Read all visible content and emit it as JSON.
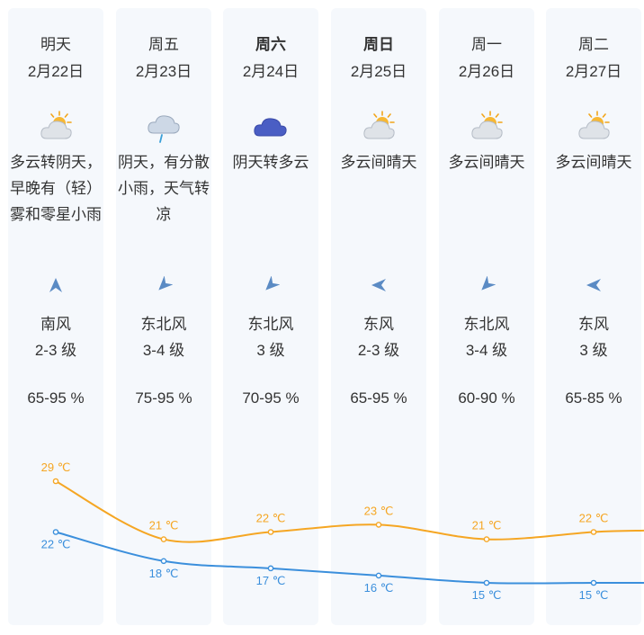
{
  "days": [
    {
      "day": "明天",
      "date": "2月22日",
      "bold": false,
      "icon": "cloudy-sun-icon",
      "desc": "多云转阴天，早晚有（轻）雾和零星小雨",
      "wind_dir": "南风",
      "wind_level": "2-3 级",
      "humidity": "65-95 %",
      "high_label": "29 ℃",
      "low_label": "22 ℃"
    },
    {
      "day": "周五",
      "date": "2月23日",
      "bold": false,
      "icon": "rain-cloud-icon",
      "desc": "阴天，有分散小雨，天气转凉",
      "wind_dir": "东北风",
      "wind_level": "3-4 级",
      "humidity": "75-95 %",
      "high_label": "21 ℃",
      "low_label": "18 ℃"
    },
    {
      "day": "周六",
      "date": "2月24日",
      "bold": true,
      "icon": "overcast-cloud-icon",
      "desc": "阴天转多云",
      "wind_dir": "东北风",
      "wind_level": "3 级",
      "humidity": "70-95 %",
      "high_label": "22 ℃",
      "low_label": "17 ℃"
    },
    {
      "day": "周日",
      "date": "2月25日",
      "bold": true,
      "icon": "cloudy-sun-icon",
      "desc": "多云间晴天",
      "wind_dir": "东风",
      "wind_level": "2-3 级",
      "humidity": "65-95 %",
      "high_label": "23 ℃",
      "low_label": "16 ℃"
    },
    {
      "day": "周一",
      "date": "2月26日",
      "bold": false,
      "icon": "cloudy-sun-icon",
      "desc": "多云间晴天",
      "wind_dir": "东北风",
      "wind_level": "3-4 级",
      "humidity": "60-90 %",
      "high_label": "21 ℃",
      "low_label": "15 ℃"
    },
    {
      "day": "周二",
      "date": "2月27日",
      "bold": false,
      "icon": "cloudy-sun-icon",
      "desc": "多云间晴天",
      "wind_dir": "东风",
      "wind_level": "3 级",
      "humidity": "65-85 %",
      "high_label": "22 ℃",
      "low_label": "15 ℃"
    }
  ],
  "chart_data": {
    "type": "line",
    "categories": [
      "2月22日",
      "2月23日",
      "2月24日",
      "2月25日",
      "2月26日",
      "2月27日"
    ],
    "series": [
      {
        "values": [
          29,
          21,
          22,
          23,
          21,
          22
        ],
        "color": "#f5a623"
      },
      {
        "values": [
          22,
          18,
          17,
          16,
          15,
          15
        ],
        "color": "#3b8fdc"
      }
    ],
    "ylim": [
      14,
      30
    ],
    "grid": false
  },
  "colors": {
    "card_bg": "#f5f8fc",
    "arrow": "#5b8bc4",
    "high_line": "#f5a623",
    "low_line": "#3b8fdc"
  }
}
